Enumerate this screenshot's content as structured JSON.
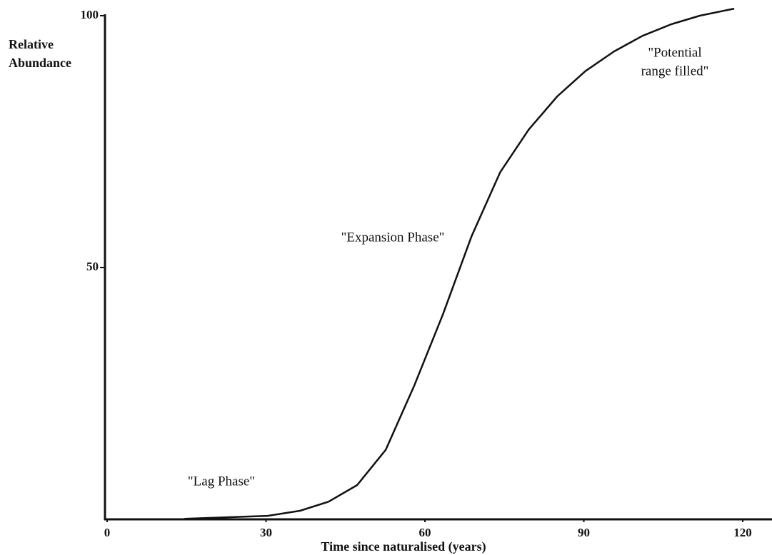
{
  "chart_data": {
    "type": "line",
    "ylabel": [
      "Relative",
      "Abundance"
    ],
    "xlabel": "Time since naturalised (years)",
    "xlim": [
      0,
      120
    ],
    "ylim": [
      0,
      100
    ],
    "xticks": [
      0,
      30,
      60,
      90,
      120
    ],
    "yticks": [
      50,
      100
    ],
    "grid": false,
    "series": [
      {
        "color": "#111111",
        "x": [
          14.6,
          30.3,
          36.4,
          41.8,
          47.2,
          52.6,
          58,
          63.4,
          68.8,
          74.2,
          79.6,
          85,
          90.3,
          95.7,
          101.1,
          106.5,
          111.9,
          118.4
        ],
        "values": [
          0.1,
          0.7,
          1.7,
          3.5,
          6.8,
          13.8,
          26.6,
          40.7,
          56.2,
          68.9,
          77.4,
          84,
          89,
          92.9,
          96,
          98.3,
          100,
          101.4
        ]
      }
    ],
    "annotations": [
      [
        "\"Lag Phase\""
      ],
      [
        "\"Expansion Phase\""
      ],
      [
        "\"Potential",
        "range filled\""
      ]
    ]
  }
}
